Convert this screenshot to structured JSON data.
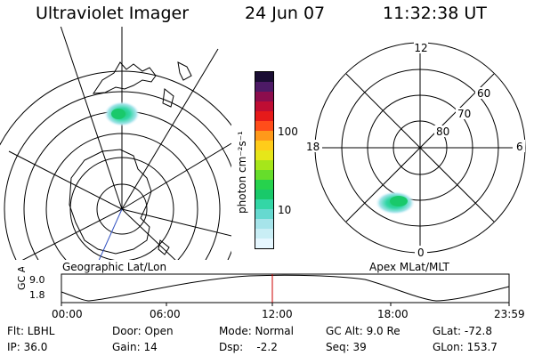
{
  "header": {
    "instrument": "Ultraviolet Imager",
    "date": "24 Jun 07",
    "time": "11:32:38 UT"
  },
  "left_panel": {
    "caption": "Geographic Lat/Lon"
  },
  "right_panel": {
    "caption": "Apex MLat/MLT",
    "mlt_labels": {
      "top": "12",
      "left": "18",
      "right": "6",
      "bottom": "0"
    },
    "lat_labels": [
      "60",
      "70",
      "80"
    ]
  },
  "colorbar": {
    "unit_label": "photon cm⁻²s⁻¹",
    "ticks": [
      "100",
      "10"
    ],
    "colors": [
      "#e6f7ff",
      "#c9eef5",
      "#a6e4ea",
      "#66d9d0",
      "#33d6a6",
      "#19c96a",
      "#26d24d",
      "#66dd2b",
      "#a6e61a",
      "#e6e619",
      "#ffcc1a",
      "#ff991a",
      "#ff4d1a",
      "#e61a1a",
      "#bf0d33",
      "#8c0d4d",
      "#4d1a66",
      "#1a0d33"
    ]
  },
  "altitude_plot": {
    "axis_label": "GC Alt",
    "y_ticks": [
      "9.0",
      "1.8"
    ],
    "x_ticks": [
      "00:00",
      "06:00",
      "12:00",
      "18:00",
      "23:59"
    ],
    "marker_time": "11:32:38",
    "marker_color": "#cc0000"
  },
  "footer": {
    "row1": [
      "Flt: LBHL",
      "Door: Open",
      "Mode: Normal",
      "GC Alt: 9.0 Re",
      "GLat: -72.8"
    ],
    "row2": [
      "IP: 36.0",
      "Gain: 14",
      "Dsp:    -2.2",
      "Seq: 39",
      "GLon: 153.7"
    ]
  }
}
